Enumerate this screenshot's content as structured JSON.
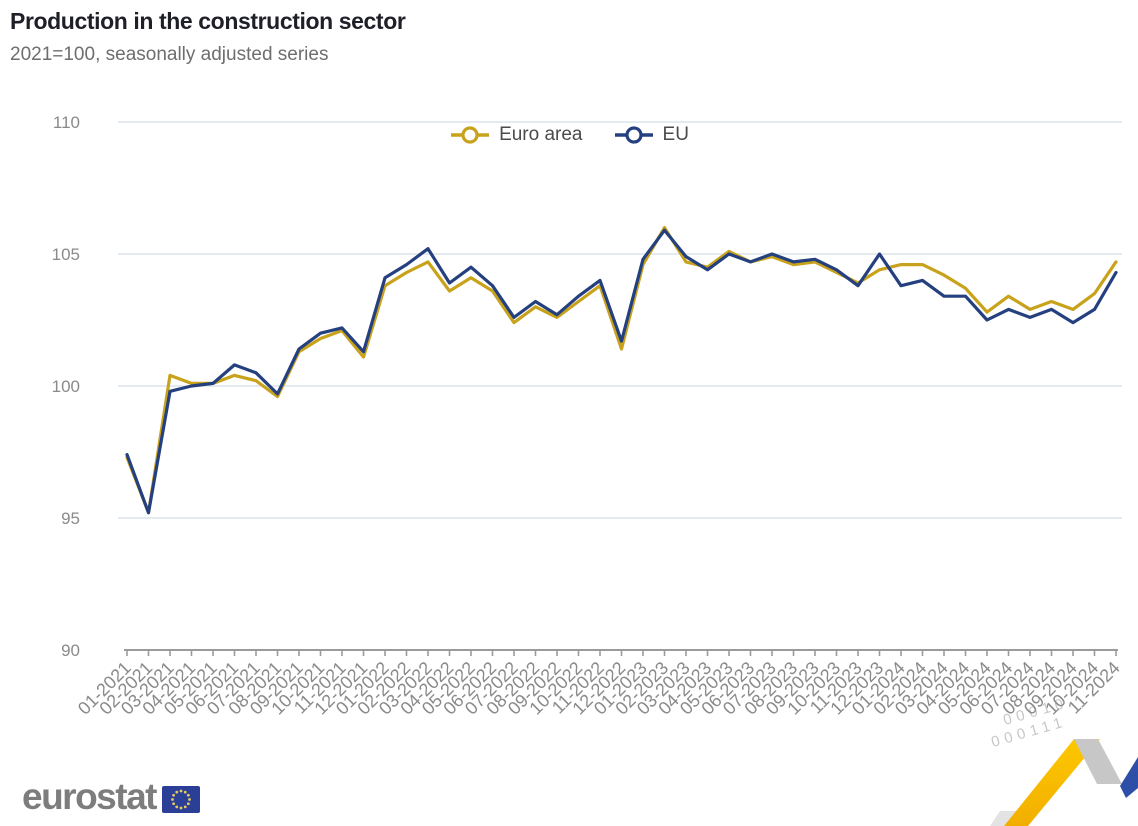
{
  "header": {
    "title": "Production in the construction sector",
    "subtitle": "2021=100, seasonally adjusted series"
  },
  "chart_data": {
    "type": "line",
    "title": "Production in the construction sector",
    "subtitle": "2021=100, seasonally adjusted series",
    "categories": [
      "01-2021",
      "02-2021",
      "03-2021",
      "04-2021",
      "05-2021",
      "06-2021",
      "07-2021",
      "08-2021",
      "09-2021",
      "10-2021",
      "11-2021",
      "12-2021",
      "01-2022",
      "02-2022",
      "03-2022",
      "04-2022",
      "05-2022",
      "06-2022",
      "07-2022",
      "08-2022",
      "09-2022",
      "10-2022",
      "11-2022",
      "12-2022",
      "01-2023",
      "02-2023",
      "03-2023",
      "04-2023",
      "05-2023",
      "06-2023",
      "07-2023",
      "08-2023",
      "09-2023",
      "10-2023",
      "11-2023",
      "12-2023",
      "01-2024",
      "02-2024",
      "03-2024",
      "04-2024",
      "05-2024",
      "06-2024",
      "07-2024",
      "08-2024",
      "09-2024",
      "10-2024",
      "11-2024"
    ],
    "series": [
      {
        "name": "Euro area",
        "color": "#C9A21C",
        "values": [
          97.3,
          95.2,
          100.4,
          100.1,
          100.1,
          100.4,
          100.2,
          99.6,
          101.3,
          101.8,
          102.1,
          101.1,
          103.8,
          104.3,
          104.7,
          103.6,
          104.1,
          103.6,
          102.4,
          103.0,
          102.6,
          103.2,
          103.8,
          101.4,
          104.6,
          106.0,
          104.7,
          104.5,
          105.1,
          104.7,
          104.9,
          104.6,
          104.7,
          104.3,
          103.9,
          104.4,
          104.6,
          104.6,
          104.2,
          103.7,
          102.8,
          103.4,
          102.9,
          103.2,
          102.9,
          103.5,
          104.7
        ]
      },
      {
        "name": "EU",
        "color": "#24407F",
        "values": [
          97.4,
          95.2,
          99.8,
          100.0,
          100.1,
          100.8,
          100.5,
          99.7,
          101.4,
          102.0,
          102.2,
          101.3,
          104.1,
          104.6,
          105.2,
          103.9,
          104.5,
          103.8,
          102.6,
          103.2,
          102.7,
          103.4,
          104.0,
          101.7,
          104.8,
          105.9,
          104.9,
          104.4,
          105.0,
          104.7,
          105.0,
          104.7,
          104.8,
          104.4,
          103.8,
          105.0,
          103.8,
          104.0,
          103.4,
          103.4,
          102.5,
          102.9,
          102.6,
          102.9,
          102.4,
          102.9,
          104.3
        ]
      }
    ],
    "xlabel": "",
    "ylabel": "",
    "ylim": [
      90,
      110
    ],
    "yticks": [
      90,
      95,
      100,
      105,
      110
    ],
    "grid": true,
    "legend_position": "top-center"
  },
  "footer": {
    "logo_text": "eurostat"
  },
  "decor": {
    "binary_row_1": "00010",
    "binary_row_2": "000111"
  },
  "colors": {
    "euro_area_line": "#C9A21C",
    "eu_line": "#24407F",
    "gridline": "#E4EAF0",
    "axis": "#9B9B9B",
    "tick_label": "#8A8A8A",
    "title": "#1F1F28",
    "subtitle": "#6E6E6E",
    "legend_text": "#4B4B4B",
    "logo_gray": "#7D7D7D",
    "flag_blue": "#2B3F97",
    "star_yellow": "#E8C95C",
    "ribbon_yellow": "#FDC800",
    "ribbon_yellow_dark": "#F2AE00",
    "ribbon_gray": "#C7C7C7",
    "ribbon_tail_gray": "#E3E3E3",
    "ribbon_blue": "#2D4FA8"
  }
}
